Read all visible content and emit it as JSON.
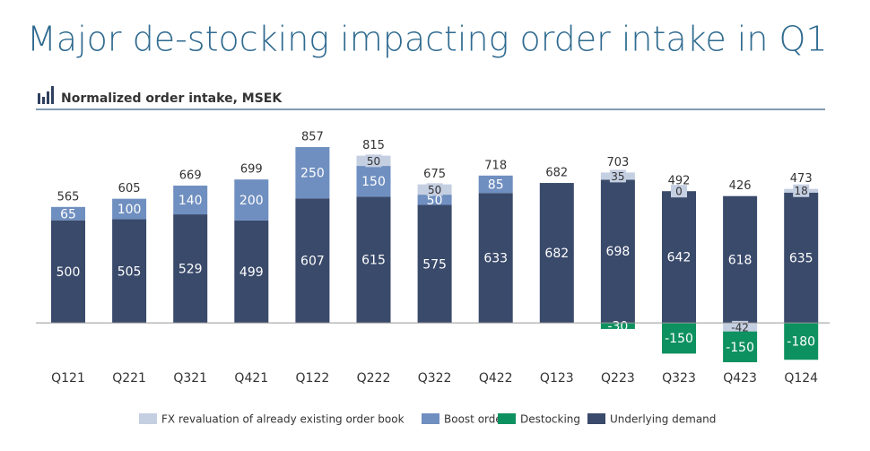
{
  "chart_data": {
    "type": "bar",
    "title": "Major de-stocking impacting order intake in Q1",
    "subtitle": "Normalized order intake, MSEK",
    "categories": [
      "Q121",
      "Q221",
      "Q321",
      "Q421",
      "Q122",
      "Q222",
      "Q322",
      "Q422",
      "Q123",
      "Q223",
      "Q323",
      "Q423",
      "Q124"
    ],
    "series": [
      {
        "name": "FX revaluation of already existing order book",
        "color": "#c5cfe2",
        "values": [
          null,
          null,
          null,
          null,
          null,
          50,
          50,
          null,
          null,
          35,
          0,
          -42,
          18
        ]
      },
      {
        "name": "Boost orders",
        "color": "#6f8fc0",
        "values": [
          65,
          100,
          140,
          200,
          250,
          150,
          50,
          85,
          null,
          null,
          null,
          null,
          null
        ]
      },
      {
        "name": "Destocking",
        "color": "#0e9160",
        "values": [
          null,
          null,
          null,
          null,
          null,
          null,
          null,
          null,
          null,
          -30,
          -150,
          -150,
          -180
        ]
      },
      {
        "name": "Underlying demand",
        "color": "#3a4a6b",
        "values": [
          500,
          505,
          529,
          499,
          607,
          615,
          575,
          633,
          682,
          698,
          642,
          618,
          635
        ]
      }
    ],
    "totals": [
      565,
      605,
      669,
      699,
      857,
      815,
      675,
      718,
      682,
      703,
      492,
      426,
      473
    ],
    "ylim": [
      -262,
      962
    ],
    "stacked": true
  }
}
